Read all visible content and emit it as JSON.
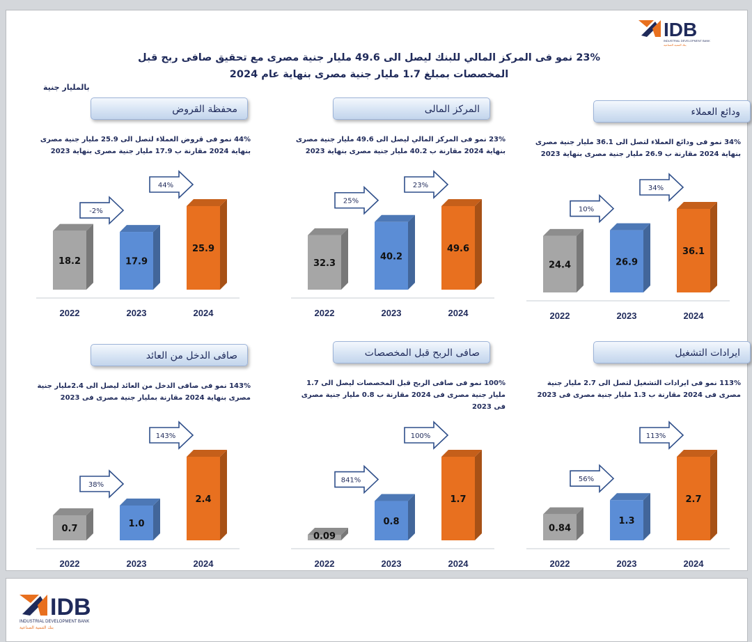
{
  "header": {
    "title_line1": "23% نمو فى المركز المالي للبنك ليصل الى 49.6 مليار جنية مصرى مع تحقيق صافى ربح قبل",
    "title_line2": "المخصصات بمبلغ 1.7 مليار جنية مصرى بنهاية عام 2024",
    "unit": "بالمليار جنية"
  },
  "brand": {
    "logo_text": "IDB",
    "logo_subtitle": "INDUSTRIAL DEVELOPMENT BANK",
    "logo_arabic": "بنك التنمية الصناعية"
  },
  "colors": {
    "y2022": "#a6a6a6",
    "y2023": "#5b8dd6",
    "y2024": "#e8701f",
    "title_text": "#1f2a5a"
  },
  "chart_data": [
    {
      "type": "bar",
      "title": "ودائع العملاء",
      "description": "34% نمو فى ودائع العملاء لتصل الى 36.1 مليار جنية مصرى بنهاية 2024 مقارنة ب 26.9 مليار جنية مصرى بنهاية 2023",
      "categories": [
        "2022",
        "2023",
        "2024"
      ],
      "values": [
        24.4,
        26.9,
        36.1
      ],
      "value_labels": [
        "24.4",
        "26.9",
        "36.1"
      ],
      "growth_labels": [
        "10%",
        "34%"
      ]
    },
    {
      "type": "bar",
      "title": "المركز المالى",
      "description": "23% نمو فى المركز المالي ليصل الى 49.6 مليار جنية مصرى بنهاية 2024 مقارنة ب 40.2 مليار جنية مصرى بنهاية 2023",
      "categories": [
        "2022",
        "2023",
        "2024"
      ],
      "values": [
        32.3,
        40.2,
        49.6
      ],
      "value_labels": [
        "32.3",
        "40.2",
        "49.6"
      ],
      "growth_labels": [
        "25%",
        "23%"
      ]
    },
    {
      "type": "bar",
      "title": "محفظة القروض",
      "description": "44% نمو فى قروض العملاء لتصل الى 25.9 مليار جنية مصرى بنهاية 2024 مقارنة ب 17.9 مليار جنية مصرى بنهاية 2023",
      "categories": [
        "2022",
        "2023",
        "2024"
      ],
      "values": [
        18.2,
        17.9,
        25.9
      ],
      "value_labels": [
        "18.2",
        "17.9",
        "25.9"
      ],
      "growth_labels": [
        "-2%",
        "44%"
      ]
    },
    {
      "type": "bar",
      "title": "ايرادات التشغيل",
      "description": "113% نمو فى ايرادات التشغيل لتصل الى 2.7 مليار جنية مصرى فى 2024 مقارنة ب 1.3 مليار جنية مصرى فى 2023",
      "categories": [
        "2022",
        "2023",
        "2024"
      ],
      "values": [
        0.84,
        1.3,
        2.7
      ],
      "value_labels": [
        "0.84",
        "1.3",
        "2.7"
      ],
      "growth_labels": [
        "56%",
        "113%"
      ]
    },
    {
      "type": "bar",
      "title": "صافى الربح قبل المخصصات",
      "description": "100% نمو فى صافى الربح قبل المخصصات ليصل الى 1.7 مليار جنية مصرى فى 2024 مقارنة ب 0.8 مليار جنية مصرى فى 2023",
      "categories": [
        "2022",
        "2023",
        "2024"
      ],
      "values": [
        0.09,
        0.8,
        1.7
      ],
      "value_labels": [
        "0.09",
        "0.8",
        "1.7"
      ],
      "growth_labels": [
        "841%",
        "100%"
      ]
    },
    {
      "type": "bar",
      "title": "صافى الدخل من العائد",
      "description": "143% نمو فى صافى الدخل من العائد ليصل الى 2.4مليار جنية مصرى بنهاية 2024 مقارنة بمليار جنية مصرى فى 2023",
      "categories": [
        "2022",
        "2023",
        "2024"
      ],
      "values": [
        0.7,
        1.0,
        2.4
      ],
      "value_labels": [
        "0.7",
        "1.0",
        "2.4"
      ],
      "growth_labels": [
        "38%",
        "143%"
      ]
    }
  ]
}
